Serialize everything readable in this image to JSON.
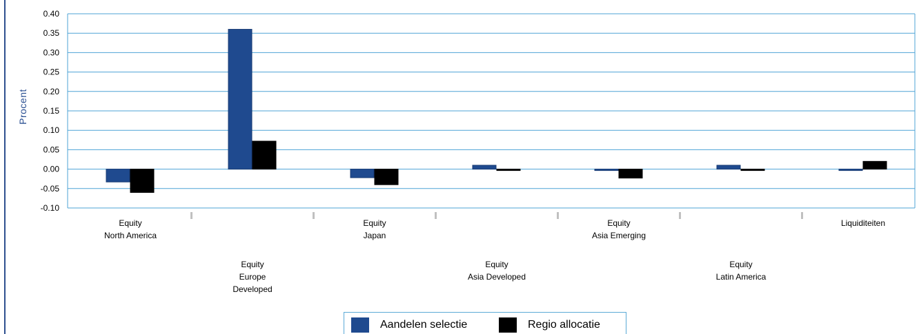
{
  "chart_data": {
    "type": "bar",
    "ylabel": "Procent",
    "ylim": [
      -0.1,
      0.4
    ],
    "yticks": [
      "0.40",
      "0.35",
      "0.30",
      "0.25",
      "0.20",
      "0.15",
      "0.10",
      "0.05",
      "0.00",
      "-0.05",
      "-0.10"
    ],
    "grid": true,
    "legend_position": "bottom",
    "categories": [
      [
        "Equity",
        "North America"
      ],
      [
        "Equity",
        "Europe",
        "Developed"
      ],
      [
        "Equity",
        "Japan"
      ],
      [
        "Equity",
        "Asia Developed"
      ],
      [
        "Equity",
        "Asia Emerging"
      ],
      [
        "Equity",
        "Latin America"
      ],
      [
        "Liquiditeiten"
      ]
    ],
    "series": [
      {
        "name": "Aandelen selectie",
        "color": "#1f4a8f",
        "values": [
          -0.033,
          0.36,
          -0.022,
          0.01,
          -0.002,
          0.01,
          -0.002
        ]
      },
      {
        "name": "Regio allocatie",
        "color": "#000000",
        "values": [
          -0.06,
          0.072,
          -0.04,
          -0.002,
          -0.023,
          -0.002,
          0.02
        ]
      }
    ]
  },
  "colors": {
    "grid": "#4da3d6",
    "axis_text": "#000000",
    "ylabel": "#2a4f92",
    "tick_mark": "#c0c0c0"
  }
}
